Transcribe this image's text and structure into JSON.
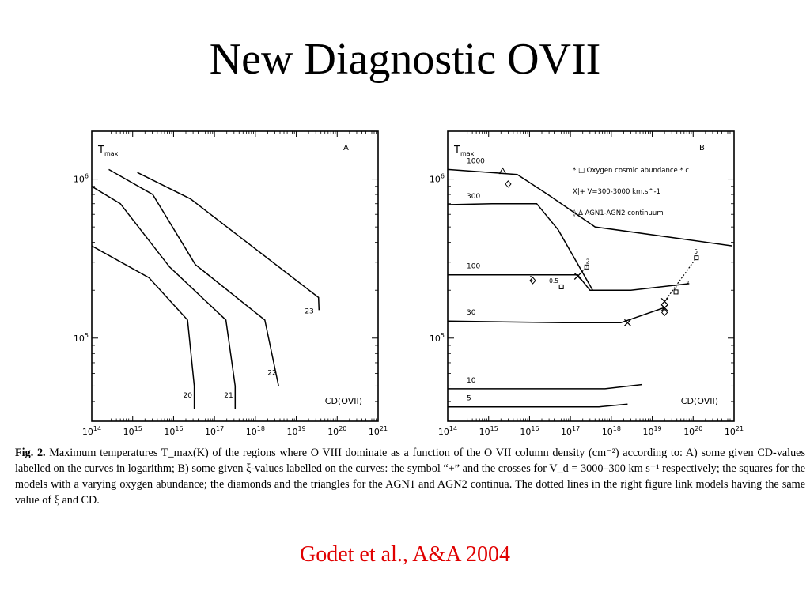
{
  "slide": {
    "title": "New Diagnostic OVII",
    "credit": "Godet et al., A&A 2004",
    "credit_color": "#e00000"
  },
  "caption": {
    "figlabel": "Fig. 2.",
    "text": "Maximum temperatures T_max(K) of the regions where O VIII dominate as a function of the O VII column density (cm⁻²) according to: A) some given CD-values labelled on the curves in logarithm; B) some given ξ-values labelled on the curves: the symbol “+” and the crosses for V_d = 3000–300 km s⁻¹ respectively; the squares for the models with a varying oxygen abundance; the diamonds and the triangles for the AGN1 and AGN2 continua. The dotted lines in the right figure link models having the same value of ξ and CD."
  },
  "chart_data": [
    {
      "type": "line",
      "panel_label": "A",
      "ylabel": "Tmax",
      "xlabel": "CD(OVII)",
      "x_scale": "log",
      "y_scale": "log",
      "xlim": [
        100000000000000.0,
        1e+21
      ],
      "ylim": [
        30000.0,
        2000000.0
      ],
      "x_ticks": [
        "10^14",
        "10^15",
        "10^16",
        "10^17",
        "10^18",
        "10^19",
        "10^20",
        "10^21"
      ],
      "y_ticks": [
        "10^5",
        "10^6"
      ],
      "series": [
        {
          "name": "20",
          "x": [
            100000000000000.0,
            2500000000000000.0,
            2.2e+16,
            3.2e+16,
            3.2e+16
          ],
          "y": [
            380000.0,
            240000.0,
            130000.0,
            50000.0,
            36000.0
          ]
        },
        {
          "name": "21",
          "x": [
            100000000000000.0,
            500000000000000.0,
            8000000000000000.0,
            1.9e+17,
            3.2e+17,
            3.2e+17
          ],
          "y": [
            900000.0,
            700000.0,
            280000.0,
            130000.0,
            50000.0,
            36000.0
          ]
        },
        {
          "name": "22",
          "x": [
            260000000000000.0,
            3100000000000000.0,
            3.4e+16,
            1.7e+18,
            3.7e+18
          ],
          "y": [
            1150000.0,
            800000.0,
            290000.0,
            130000.0,
            50000.0
          ]
        },
        {
          "name": "23",
          "x": [
            1300000000000000.0,
            2.6e+16,
            3.5e+19,
            3.6e+19
          ],
          "y": [
            1100000.0,
            750000.0,
            180000.0,
            150000.0
          ]
        }
      ]
    },
    {
      "type": "line",
      "panel_label": "B",
      "ylabel": "Tmax",
      "xlabel": "CD(OVII)",
      "x_scale": "log",
      "y_scale": "log",
      "xlim": [
        100000000000000.0,
        1e+21
      ],
      "ylim": [
        30000.0,
        2000000.0
      ],
      "x_ticks": [
        "10^14",
        "10^15",
        "10^16",
        "10^17",
        "10^18",
        "10^19",
        "10^20",
        "10^21"
      ],
      "y_ticks": [
        "10^5",
        "10^6"
      ],
      "legend": [
        "* □ Oxygen cosmic abundance * c",
        "X|+ V=300-3000 km.s^-1",
        "◊|Δ AGN1-AGN2 continuum"
      ],
      "legend_position": "top-right",
      "series": [
        {
          "name": "1000",
          "x": [
            100000000000000.0,
            5000000000000000.0,
            2.8e+16,
            4e+17,
            9e+20
          ],
          "y": [
            1150000.0,
            1070000.0,
            800000.0,
            500000.0,
            380000.0
          ]
        },
        {
          "name": "300",
          "x": [
            100000000000000.0,
            1200000000000000.0,
            6500000000000000.0,
            1.5e+16,
            5e+16,
            3.5e+17
          ],
          "y": [
            690000.0,
            700000.0,
            700000.0,
            700000.0,
            480000.0,
            200000.0
          ]
        },
        {
          "name": "100",
          "x": [
            100000000000000.0,
            1.2e+16,
            1.5e+17,
            3e+17,
            3e+18,
            8e+19
          ],
          "y": [
            250000.0,
            250000.0,
            250000.0,
            200000.0,
            200000.0,
            220000.0
          ]
        },
        {
          "name": "30",
          "x": [
            100000000000000.0,
            6.5e+16,
            1.7e+18,
            1.9e+19
          ],
          "y": [
            128000.0,
            125000.0,
            125000.0,
            155000.0
          ]
        },
        {
          "name": "10",
          "x": [
            100000000000000.0,
            4000000000000000.0,
            7e+17,
            5.5e+18
          ],
          "y": [
            48000.0,
            48000.0,
            48000.0,
            51000.0
          ]
        },
        {
          "name": "5",
          "x": [
            100000000000000.0,
            4000000000000000.0,
            5e+17,
            2.5e+18
          ],
          "y": [
            37000.0,
            37000.0,
            37000.0,
            38500.0
          ]
        }
      ],
      "point_labels": [
        "2",
        "0.5",
        "2",
        "2",
        "5",
        "2"
      ]
    }
  ]
}
